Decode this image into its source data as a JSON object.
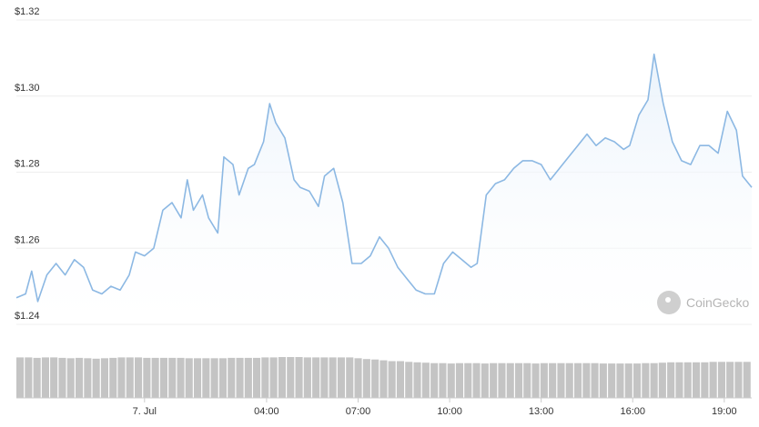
{
  "chart_data": {
    "type": "area",
    "title": "",
    "xlabel": "",
    "ylabel": "",
    "y_ticks": [
      "$1.32",
      "$1.30",
      "$1.28",
      "$1.26",
      "$1.24"
    ],
    "y_tick_values": [
      1.32,
      1.3,
      1.28,
      1.26,
      1.24
    ],
    "ylim": [
      1.24,
      1.32
    ],
    "x_ticks": [
      "7. Jul",
      "04:00",
      "07:00",
      "10:00",
      "13:00",
      "16:00",
      "19:00"
    ],
    "x_tick_hours": [
      0,
      4,
      7,
      10,
      13,
      16,
      19
    ],
    "xlim_hours": [
      -4.2,
      19.9
    ],
    "grid": true,
    "legend": "none",
    "series": [
      {
        "x_hours": [
          -4.2,
          -3.9,
          -3.7,
          -3.5,
          -3.2,
          -2.9,
          -2.6,
          -2.3,
          -2.0,
          -1.7,
          -1.4,
          -1.1,
          -0.8,
          -0.5,
          -0.3,
          0.0,
          0.3,
          0.6,
          0.9,
          1.2,
          1.4,
          1.6,
          1.9,
          2.1,
          2.4,
          2.6,
          2.9,
          3.1,
          3.4,
          3.6,
          3.9,
          4.1,
          4.3,
          4.6,
          4.9,
          5.1,
          5.4,
          5.7,
          5.9,
          6.2,
          6.5,
          6.8,
          7.1,
          7.4,
          7.7,
          8.0,
          8.3,
          8.6,
          8.9,
          9.2,
          9.5,
          9.8,
          10.1,
          10.4,
          10.7,
          10.9,
          11.2,
          11.5,
          11.8,
          12.1,
          12.4,
          12.7,
          13.0,
          13.3,
          13.6,
          13.9,
          14.2,
          14.5,
          14.8,
          15.1,
          15.4,
          15.7,
          15.9,
          16.2,
          16.5,
          16.7,
          17.0,
          17.3,
          17.6,
          17.9,
          18.2,
          18.5,
          18.8,
          19.1,
          19.4,
          19.6,
          19.9
        ],
        "y": [
          1.247,
          1.248,
          1.254,
          1.246,
          1.253,
          1.256,
          1.253,
          1.257,
          1.255,
          1.249,
          1.248,
          1.25,
          1.249,
          1.253,
          1.259,
          1.258,
          1.26,
          1.27,
          1.272,
          1.268,
          1.278,
          1.27,
          1.274,
          1.268,
          1.264,
          1.284,
          1.282,
          1.274,
          1.281,
          1.282,
          1.288,
          1.298,
          1.293,
          1.289,
          1.278,
          1.276,
          1.275,
          1.271,
          1.279,
          1.281,
          1.272,
          1.256,
          1.256,
          1.258,
          1.263,
          1.26,
          1.255,
          1.252,
          1.249,
          1.248,
          1.248,
          1.256,
          1.259,
          1.257,
          1.255,
          1.256,
          1.274,
          1.277,
          1.278,
          1.281,
          1.283,
          1.283,
          1.282,
          1.278,
          1.281,
          1.284,
          1.287,
          1.29,
          1.287,
          1.289,
          1.288,
          1.286,
          1.287,
          1.295,
          1.299,
          1.311,
          1.298,
          1.288,
          1.283,
          1.282,
          1.287,
          1.287,
          1.285,
          1.296,
          1.291,
          1.279,
          1.276
        ]
      }
    ],
    "volume": {
      "heights_relative": [
        1.0,
        1.0,
        0.99,
        1.0,
        1.0,
        0.99,
        0.98,
        0.99,
        0.98,
        0.97,
        0.98,
        0.99,
        1.0,
        1.0,
        1.0,
        0.99,
        0.99,
        0.99,
        0.99,
        0.99,
        0.98,
        0.98,
        0.98,
        0.98,
        0.98,
        0.99,
        0.99,
        0.99,
        0.99,
        1.0,
        1.0,
        1.01,
        1.01,
        1.01,
        1.0,
        1.0,
        1.0,
        1.0,
        1.0,
        1.0,
        0.98,
        0.96,
        0.95,
        0.93,
        0.91,
        0.91,
        0.89,
        0.88,
        0.87,
        0.86,
        0.86,
        0.85,
        0.86,
        0.86,
        0.86,
        0.85,
        0.86,
        0.86,
        0.86,
        0.86,
        0.86,
        0.85,
        0.86,
        0.86,
        0.86,
        0.86,
        0.86,
        0.86,
        0.86,
        0.85,
        0.85,
        0.85,
        0.85,
        0.85,
        0.86,
        0.86,
        0.87,
        0.88,
        0.88,
        0.88,
        0.88,
        0.88,
        0.89,
        0.89,
        0.89,
        0.89,
        0.89
      ],
      "color": "#c4c4c4"
    }
  },
  "colors": {
    "line": "#8cb8e3",
    "fill_top": "#e9f2fb",
    "grid": "#eeeeee"
  },
  "watermark": {
    "text": "CoinGecko",
    "icon": "coingecko-logo-icon"
  }
}
